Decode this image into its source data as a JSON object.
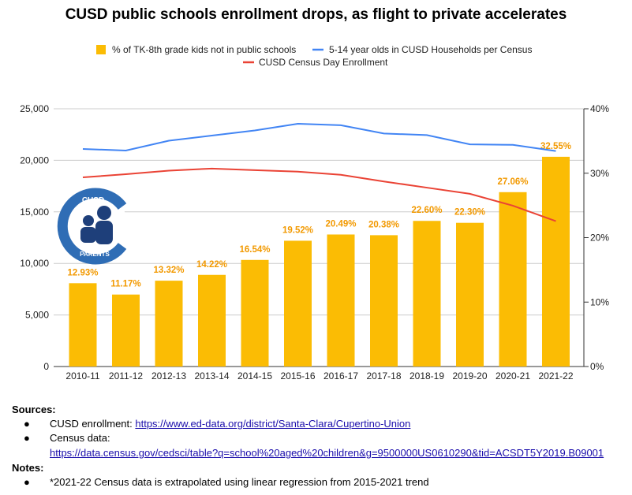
{
  "chart_data": {
    "type": "bar+line",
    "title": "CUSD public schools enrollment drops, as flight to private accelerates",
    "categories": [
      "2010-11",
      "2011-12",
      "2012-13",
      "2013-14",
      "2014-15",
      "2015-16",
      "2016-17",
      "2017-18",
      "2018-19",
      "2019-20",
      "2020-21",
      "2021-22"
    ],
    "series": [
      {
        "name": "% of TK-8th grade kids not in public schools",
        "type": "bar",
        "axis": "right",
        "color": "#FBBC04",
        "values": [
          12.93,
          11.17,
          13.32,
          14.22,
          16.54,
          19.52,
          20.49,
          20.38,
          22.6,
          22.3,
          27.06,
          32.55
        ],
        "labels": [
          "12.93%",
          "11.17%",
          "13.32%",
          "14.22%",
          "16.54%",
          "19.52%",
          "20.49%",
          "20.38%",
          "22.60%",
          "22.30%",
          "27.06%",
          "32.55%"
        ]
      },
      {
        "name": "5-14 year olds in CUSD Households per Census",
        "type": "line",
        "axis": "left",
        "color": "#4285F4",
        "values": [
          21100,
          20950,
          21900,
          22400,
          22900,
          23550,
          23400,
          22600,
          22450,
          21550,
          21500,
          20900
        ]
      },
      {
        "name": "CUSD Census Day Enrollment",
        "type": "line",
        "axis": "left",
        "color": "#EA4335",
        "values": [
          18350,
          18650,
          19000,
          19200,
          19050,
          18900,
          18600,
          17950,
          17350,
          16750,
          15600,
          14100
        ]
      }
    ],
    "left_axis": {
      "ylim": [
        0,
        25000
      ],
      "ticks": [
        "0",
        "5,000",
        "10,000",
        "15,000",
        "20,000",
        "25,000"
      ]
    },
    "right_axis": {
      "ylim": [
        0,
        40
      ],
      "ticks": [
        "0%",
        "10%",
        "20%",
        "30%",
        "40%"
      ]
    },
    "label_color": "#F29900",
    "legend_placement": "top"
  },
  "logo": {
    "text_top": "CUSD",
    "text_bottom": "PARENTS"
  },
  "sources": {
    "heading": "Sources:",
    "items": [
      {
        "label": "CUSD enrollment: ",
        "link": "https://www.ed-data.org/district/Santa-Clara/Cupertino-Union"
      },
      {
        "label": "Census data:",
        "link": "https://data.census.gov/cedsci/table?q=school%20aged%20children&g=9500000US0610290&tid=ACSDT5Y2019.B09001"
      }
    ]
  },
  "notes": {
    "heading": "Notes:",
    "items": [
      "*2021-22 Census data is extrapolated using linear regression from 2015-2021 trend"
    ]
  }
}
